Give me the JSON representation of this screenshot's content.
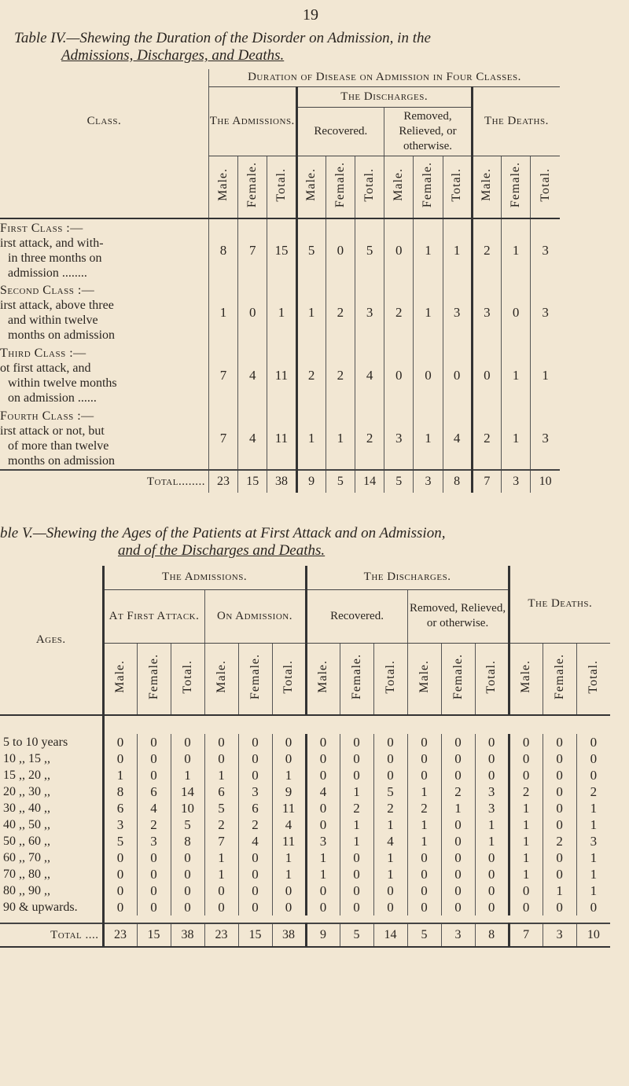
{
  "page_number": "19",
  "table4": {
    "title_line1": "Table IV.—Shewing the Duration of the Disorder on Admission, in the",
    "title_line2": "Admissions, Discharges, and Deaths.",
    "super_header": "Duration of Disease on Admission in Four Classes.",
    "class_header": "Class.",
    "admissions_header": "The Admissions.",
    "discharges_header": "The Discharges.",
    "recovered_header": "Recovered.",
    "removed_header": "Removed, Relieved, or otherwise.",
    "deaths_header": "The Deaths.",
    "sub_headers": [
      "Male.",
      "Female.",
      "Total.",
      "Male.",
      "Female.",
      "Total.",
      "Male.",
      "Female.",
      "Total.",
      "Male.",
      "Female.",
      "Total."
    ],
    "rows": [
      {
        "class": "First Class :—",
        "desc": [
          "irst attack, and with-",
          "in three months on",
          "admission ........"
        ],
        "values": [
          "8",
          "7",
          "15",
          "5",
          "0",
          "5",
          "0",
          "1",
          "1",
          "2",
          "1",
          "3"
        ]
      },
      {
        "class": "Second Class :—",
        "desc": [
          "irst attack, above three",
          "and within twelve",
          "months on admission"
        ],
        "values": [
          "1",
          "0",
          "1",
          "1",
          "2",
          "3",
          "2",
          "1",
          "3",
          "3",
          "0",
          "3"
        ]
      },
      {
        "class": "Third Class :—",
        "desc": [
          "ot first attack, and",
          "within twelve months",
          "on admission ......"
        ],
        "values": [
          "7",
          "4",
          "11",
          "2",
          "2",
          "4",
          "0",
          "0",
          "0",
          "0",
          "1",
          "1"
        ]
      },
      {
        "class": "Fourth Class :—",
        "desc": [
          "irst attack or not, but",
          "of more than twelve",
          "months on admission"
        ],
        "values": [
          "7",
          "4",
          "11",
          "1",
          "1",
          "2",
          "3",
          "1",
          "4",
          "2",
          "1",
          "3"
        ]
      }
    ],
    "total_label": "Total........",
    "totals": [
      "23",
      "15",
      "38",
      "9",
      "5",
      "14",
      "5",
      "3",
      "8",
      "7",
      "3",
      "10"
    ]
  },
  "table5": {
    "title_line1": "ble V.—Shewing the Ages of the Patients at First Attack and on Admission,",
    "title_line2": "and of the Discharges and Deaths.",
    "ages_header": "Ages.",
    "admissions_header": "The Admissions.",
    "first_attack_header": "At First Attack.",
    "on_admission_header": "On Admission.",
    "discharges_header": "The Discharges.",
    "recovered_header": "Recovered.",
    "removed_header": "Removed, Relieved, or otherwise.",
    "deaths_header": "The Deaths.",
    "sub_headers": [
      "Male.",
      "Female.",
      "Total.",
      "Male.",
      "Female.",
      "Total.",
      "Male.",
      "Female.",
      "Total.",
      "Male.",
      "Female.",
      "Total.",
      "Male.",
      "Female.",
      "Total."
    ],
    "rows": [
      {
        "age": "5 to 10 years",
        "values": [
          "0",
          "0",
          "0",
          "0",
          "0",
          "0",
          "0",
          "0",
          "0",
          "0",
          "0",
          "0",
          "0",
          "0",
          "0"
        ]
      },
      {
        "age": "10 ,, 15 ,,",
        "values": [
          "0",
          "0",
          "0",
          "0",
          "0",
          "0",
          "0",
          "0",
          "0",
          "0",
          "0",
          "0",
          "0",
          "0",
          "0"
        ]
      },
      {
        "age": "15 ,, 20 ,,",
        "values": [
          "1",
          "0",
          "1",
          "1",
          "0",
          "1",
          "0",
          "0",
          "0",
          "0",
          "0",
          "0",
          "0",
          "0",
          "0"
        ]
      },
      {
        "age": "20 ,, 30 ,,",
        "values": [
          "8",
          "6",
          "14",
          "6",
          "3",
          "9",
          "4",
          "1",
          "5",
          "1",
          "2",
          "3",
          "2",
          "0",
          "2"
        ]
      },
      {
        "age": "30 ,, 40 ,,",
        "values": [
          "6",
          "4",
          "10",
          "5",
          "6",
          "11",
          "0",
          "2",
          "2",
          "2",
          "1",
          "3",
          "1",
          "0",
          "1"
        ]
      },
      {
        "age": "40 ,, 50 ,,",
        "values": [
          "3",
          "2",
          "5",
          "2",
          "2",
          "4",
          "0",
          "1",
          "1",
          "1",
          "0",
          "1",
          "1",
          "0",
          "1"
        ]
      },
      {
        "age": "50 ,, 60 ,,",
        "values": [
          "5",
          "3",
          "8",
          "7",
          "4",
          "11",
          "3",
          "1",
          "4",
          "1",
          "0",
          "1",
          "1",
          "2",
          "3"
        ]
      },
      {
        "age": "60 ,, 70 ,,",
        "values": [
          "0",
          "0",
          "0",
          "1",
          "0",
          "1",
          "1",
          "0",
          "1",
          "0",
          "0",
          "0",
          "1",
          "0",
          "1"
        ]
      },
      {
        "age": "70 ,, 80 ,,",
        "values": [
          "0",
          "0",
          "0",
          "1",
          "0",
          "1",
          "1",
          "0",
          "1",
          "0",
          "0",
          "0",
          "1",
          "0",
          "1"
        ]
      },
      {
        "age": "80 ,, 90 ,,",
        "values": [
          "0",
          "0",
          "0",
          "0",
          "0",
          "0",
          "0",
          "0",
          "0",
          "0",
          "0",
          "0",
          "0",
          "1",
          "1"
        ]
      },
      {
        "age": "90 & upwards.",
        "values": [
          "0",
          "0",
          "0",
          "0",
          "0",
          "0",
          "0",
          "0",
          "0",
          "0",
          "0",
          "0",
          "0",
          "0",
          "0"
        ]
      }
    ],
    "total_label": "Total ....",
    "totals": [
      "23",
      "15",
      "38",
      "23",
      "15",
      "38",
      "9",
      "5",
      "14",
      "5",
      "3",
      "8",
      "7",
      "3",
      "10"
    ]
  }
}
